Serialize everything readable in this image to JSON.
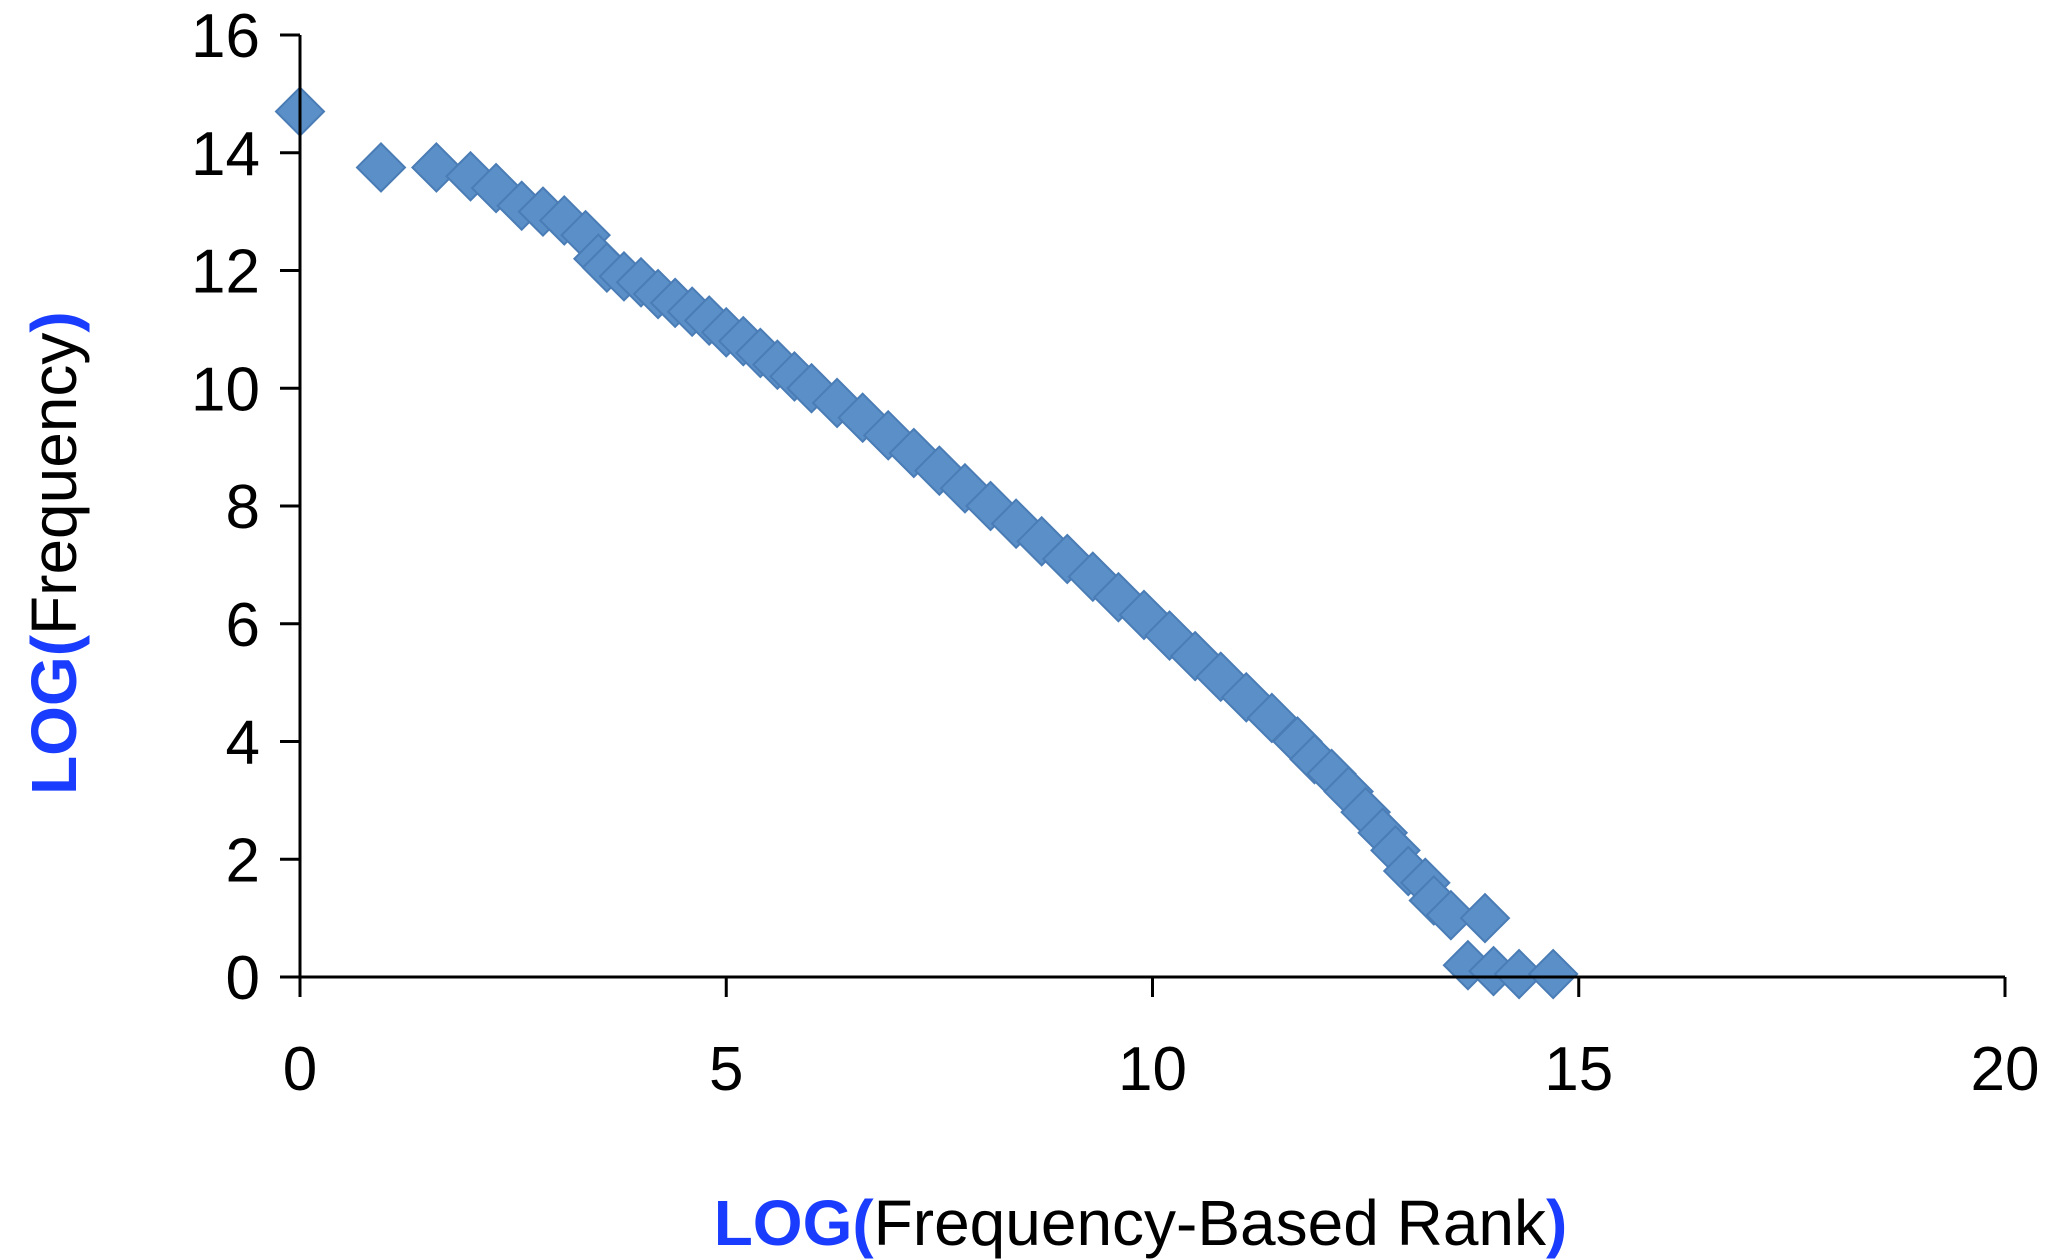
{
  "chart_data": {
    "type": "scatter",
    "title": "",
    "xlabel": {
      "prefix": "LOG(",
      "text": "Frequency-Based Rank",
      "suffix": ")"
    },
    "ylabel": {
      "prefix": "LOG(",
      "text": "Frequency",
      "suffix": ")"
    },
    "xlim": [
      0,
      20
    ],
    "ylim": [
      0,
      16
    ],
    "xticks": [
      "0",
      "5",
      "10",
      "15",
      "20"
    ],
    "yticks": [
      "0",
      "2",
      "4",
      "6",
      "8",
      "10",
      "12",
      "14",
      "16"
    ],
    "grid": false,
    "legend": "none",
    "marker": "diamond",
    "colors": {
      "marker_fill": "#5b8fc7",
      "marker_edge": "#4a7cb6",
      "axis_accent": "#1a3cff",
      "axis_line": "#000000"
    },
    "series": [
      {
        "values": [
          [
            0.0,
            14.7
          ],
          [
            0.95,
            13.75
          ],
          [
            1.6,
            13.75
          ],
          [
            2.0,
            13.6
          ],
          [
            2.3,
            13.4
          ],
          [
            2.6,
            13.1
          ],
          [
            2.85,
            13.0
          ],
          [
            3.1,
            12.85
          ],
          [
            3.35,
            12.6
          ],
          [
            3.5,
            12.2
          ],
          [
            3.6,
            12.05
          ],
          [
            3.8,
            11.9
          ],
          [
            4.0,
            11.8
          ],
          [
            4.2,
            11.6
          ],
          [
            4.4,
            11.45
          ],
          [
            4.6,
            11.3
          ],
          [
            4.8,
            11.15
          ],
          [
            5.0,
            10.95
          ],
          [
            5.2,
            10.8
          ],
          [
            5.4,
            10.6
          ],
          [
            5.6,
            10.4
          ],
          [
            5.8,
            10.2
          ],
          [
            6.0,
            10.0
          ],
          [
            6.3,
            9.75
          ],
          [
            6.6,
            9.5
          ],
          [
            6.9,
            9.2
          ],
          [
            7.2,
            8.9
          ],
          [
            7.5,
            8.6
          ],
          [
            7.8,
            8.3
          ],
          [
            8.1,
            8.0
          ],
          [
            8.4,
            7.7
          ],
          [
            8.7,
            7.4
          ],
          [
            9.0,
            7.1
          ],
          [
            9.3,
            6.8
          ],
          [
            9.6,
            6.45
          ],
          [
            9.9,
            6.15
          ],
          [
            10.2,
            5.8
          ],
          [
            10.5,
            5.45
          ],
          [
            10.8,
            5.1
          ],
          [
            11.1,
            4.75
          ],
          [
            11.4,
            4.4
          ],
          [
            11.7,
            4.0
          ],
          [
            11.9,
            3.7
          ],
          [
            12.1,
            3.45
          ],
          [
            12.3,
            3.15
          ],
          [
            12.5,
            2.8
          ],
          [
            12.7,
            2.45
          ],
          [
            12.85,
            2.15
          ],
          [
            13.0,
            1.8
          ],
          [
            13.2,
            1.6
          ],
          [
            13.3,
            1.3
          ],
          [
            13.5,
            1.05
          ],
          [
            13.9,
            1.0
          ],
          [
            13.7,
            0.2
          ],
          [
            14.0,
            0.1
          ],
          [
            14.3,
            0.05
          ],
          [
            14.7,
            0.05
          ]
        ]
      }
    ]
  }
}
